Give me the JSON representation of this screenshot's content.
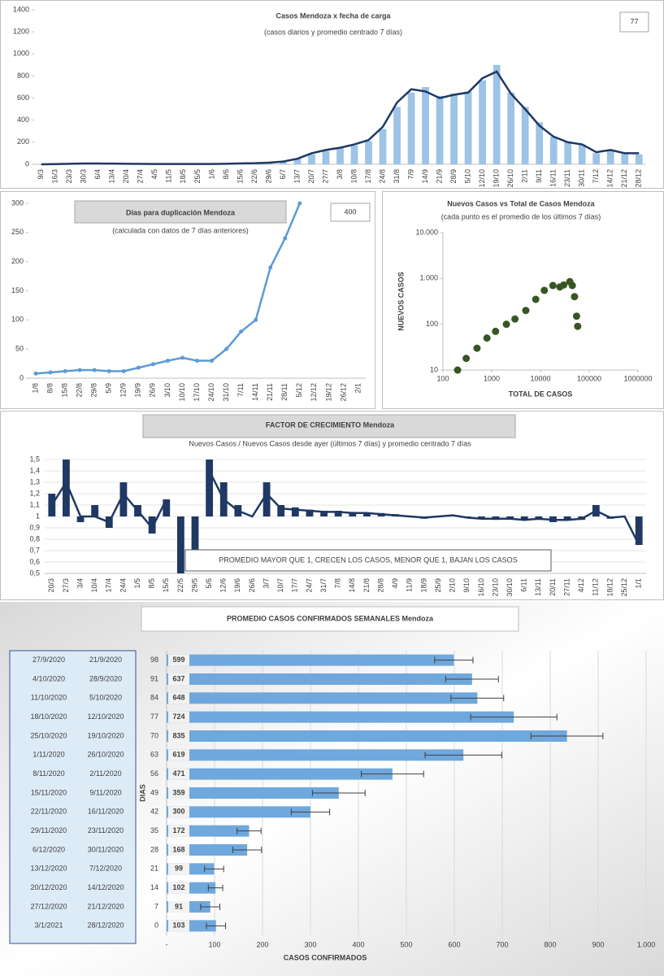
{
  "chart_data": [
    {
      "type": "bar_line",
      "title": "Casos Mendoza x fecha de carga",
      "subtitle": "(casos diarios y promedio  centrado 7 días)",
      "badge": "77",
      "categories": [
        "9/3",
        "16/3",
        "23/3",
        "30/3",
        "6/4",
        "13/4",
        "20/4",
        "27/4",
        "4/5",
        "11/5",
        "18/5",
        "25/5",
        "1/6",
        "8/6",
        "15/6",
        "22/6",
        "29/6",
        "6/7",
        "13/7",
        "20/7",
        "27/7",
        "3/8",
        "10/8",
        "17/8",
        "24/8",
        "31/8",
        "7/9",
        "14/9",
        "21/9",
        "28/9",
        "5/10",
        "12/10",
        "19/10",
        "26/10",
        "2/11",
        "9/11",
        "16/11",
        "23/11",
        "30/11",
        "7/12",
        "14/12",
        "21/12",
        "28/12"
      ],
      "series": [
        {
          "type": "bar",
          "color": "#9dc3e6",
          "values": [
            0,
            2,
            5,
            8,
            8,
            6,
            5,
            4,
            3,
            3,
            3,
            3,
            3,
            5,
            8,
            10,
            15,
            25,
            50,
            90,
            120,
            150,
            170,
            210,
            320,
            520,
            650,
            700,
            620,
            640,
            660,
            760,
            900,
            650,
            520,
            380,
            250,
            200,
            180,
            100,
            130,
            100,
            90
          ]
        },
        {
          "type": "line",
          "color": "#1f3864",
          "values": [
            0,
            2,
            5,
            7,
            7,
            6,
            5,
            4,
            3,
            3,
            3,
            3,
            3,
            5,
            8,
            10,
            15,
            25,
            50,
            100,
            130,
            150,
            180,
            220,
            340,
            560,
            680,
            660,
            600,
            630,
            650,
            780,
            840,
            640,
            500,
            350,
            250,
            200,
            180,
            110,
            130,
            100,
            100
          ]
        }
      ],
      "ylim": [
        0,
        1400
      ],
      "yticks": [
        0,
        200,
        400,
        600,
        800,
        1000,
        1200,
        1400
      ],
      "grid": false
    },
    {
      "type": "line",
      "title": "Dias para duplicación Mendoza",
      "subtitle": "(calculada con datos de 7 días anteriores)",
      "badge": "400",
      "categories": [
        "1/8",
        "8/8",
        "15/8",
        "22/8",
        "29/8",
        "5/9",
        "12/9",
        "19/9",
        "26/9",
        "3/10",
        "10/10",
        "17/10",
        "24/10",
        "31/10",
        "7/11",
        "14/11",
        "21/11",
        "28/11",
        "5/12",
        "12/12",
        "19/12",
        "26/12",
        "2/1"
      ],
      "series": [
        {
          "color": "#5b9bd5",
          "values": [
            8,
            10,
            12,
            14,
            14,
            12,
            12,
            18,
            24,
            30,
            35,
            30,
            30,
            50,
            80,
            100,
            190,
            240,
            300,
            null,
            null,
            null,
            null
          ]
        }
      ],
      "ylim": [
        0,
        300
      ],
      "yticks": [
        0,
        50,
        100,
        150,
        200,
        250,
        300
      ],
      "grid": false
    },
    {
      "type": "scatter",
      "title": "Nuevos Casos vs Total de Casos Mendoza",
      "subtitle": "(cada punto es el promedio de los últimos 7 días)",
      "x_label": "TOTAL DE CASOS",
      "y_label": "NUEVOS CASOS",
      "log_x": true,
      "log_y": true,
      "series": [
        {
          "color": "#375623",
          "x": [
            200,
            300,
            500,
            800,
            1200,
            2000,
            3000,
            5000,
            8000,
            12000,
            18000,
            25000,
            30000,
            40000,
            45000,
            50000,
            55000,
            58000
          ],
          "values": [
            10,
            18,
            30,
            50,
            70,
            100,
            130,
            200,
            350,
            550,
            700,
            650,
            720,
            850,
            700,
            400,
            150,
            90
          ]
        }
      ],
      "xlim": [
        100,
        1000000
      ],
      "xticks": [
        100,
        1000,
        10000,
        100000,
        1000000
      ],
      "ylim": [
        10,
        10000
      ],
      "yticks": [
        10,
        100,
        {
          "value": 1000,
          "label": "1.000"
        },
        {
          "value": 10000,
          "label": "10.000"
        }
      ],
      "grid": false
    },
    {
      "type": "bar_line",
      "title": "FACTOR DE CRECIMIENTO Mendoza",
      "subtitle": "Nuevos Casos  / Nuevos Casos desde ayer (últimos 7 días) y promedio  centrado 7 días",
      "annotation": "PROMEDIO MAYOR QUE 1, CRECEN LOS CASOS, MENOR QUE 1, BAJAN LOS CASOS",
      "baseline": 1,
      "categories": [
        "20/3",
        "27/3",
        "3/4",
        "10/4",
        "17/4",
        "24/4",
        "1/5",
        "8/5",
        "15/5",
        "22/5",
        "29/5",
        "5/6",
        "12/6",
        "19/6",
        "26/6",
        "3/7",
        "10/7",
        "17/7",
        "24/7",
        "31/7",
        "7/8",
        "14/8",
        "21/8",
        "28/8",
        "4/9",
        "11/9",
        "18/9",
        "25/9",
        "2/10",
        "9/10",
        "16/10",
        "23/10",
        "30/10",
        "6/11",
        "13/11",
        "20/11",
        "27/11",
        "4/12",
        "11/12",
        "18/12",
        "25/12",
        "1/1"
      ],
      "series": [
        {
          "type": "bar",
          "color": "#1f3864",
          "values": [
            1.2,
            1.5,
            0.95,
            1.1,
            0.9,
            1.3,
            1.1,
            0.85,
            1.15,
            0.5,
            0.6,
            1.5,
            1.3,
            1.1,
            1.0,
            1.3,
            1.1,
            1.08,
            1.06,
            1.05,
            1.05,
            1.04,
            1.03,
            1.03,
            1.02,
            1.0,
            0.98,
            1.0,
            1.01,
            0.99,
            0.98,
            0.97,
            0.98,
            0.97,
            0.97,
            0.95,
            0.97,
            0.97,
            1.1,
            0.98,
            1.0,
            0.75
          ]
        },
        {
          "type": "line",
          "color": "#1f3864",
          "values": [
            1.1,
            1.3,
            1.0,
            1.0,
            0.95,
            1.2,
            1.05,
            0.9,
            1.15,
            null,
            null,
            1.4,
            1.15,
            1.05,
            1.0,
            1.2,
            1.07,
            1.06,
            1.05,
            1.04,
            1.04,
            1.03,
            1.03,
            1.02,
            1.01,
            1.0,
            0.99,
            1.0,
            1.01,
            0.99,
            0.98,
            0.98,
            0.98,
            0.97,
            0.98,
            0.97,
            0.97,
            0.98,
            1.05,
            0.99,
            1.0,
            0.75
          ]
        }
      ],
      "ylim": [
        0.5,
        1.5
      ],
      "yticks": [
        {
          "value": 0.5,
          "label": "0,5"
        },
        {
          "value": 0.6,
          "label": "0,6"
        },
        {
          "value": 0.7,
          "label": "0,7"
        },
        {
          "value": 0.8,
          "label": "0,8"
        },
        {
          "value": 0.9,
          "label": "0,9"
        },
        1,
        {
          "value": 1.1,
          "label": "1,1"
        },
        {
          "value": 1.2,
          "label": "1,2"
        },
        {
          "value": 1.3,
          "label": "1,3"
        },
        {
          "value": 1.4,
          "label": "1,4"
        },
        {
          "value": 1.5,
          "label": "1,5"
        }
      ],
      "grid": true
    },
    {
      "type": "hbar",
      "title": "PROMEDIO CASOS CONFIRMADOS SEMANALES Mendoza",
      "x_label": "CASOS CONFIRMADOS",
      "y_label": "DIAS",
      "color": "#6fa8dc",
      "date_ranges": [
        [
          "27/9/2020",
          "21/9/2020"
        ],
        [
          "4/10/2020",
          "28/9/2020"
        ],
        [
          "11/10/2020",
          "5/10/2020"
        ],
        [
          "18/10/2020",
          "12/10/2020"
        ],
        [
          "25/10/2020",
          "19/10/2020"
        ],
        [
          "1/11/2020",
          "26/10/2020"
        ],
        [
          "8/11/2020",
          "2/11/2020"
        ],
        [
          "15/11/2020",
          "9/11/2020"
        ],
        [
          "22/11/2020",
          "16/11/2020"
        ],
        [
          "29/11/2020",
          "23/11/2020"
        ],
        [
          "6/12/2020",
          "30/11/2020"
        ],
        [
          "13/12/2020",
          "7/12/2020"
        ],
        [
          "20/12/2020",
          "14/12/2020"
        ],
        [
          "27/12/2020",
          "21/12/2020"
        ],
        [
          "3/1/2021",
          "28/12/2020"
        ]
      ],
      "categories": [
        "98",
        "91",
        "84",
        "77",
        "70",
        "63",
        "56",
        "49",
        "42",
        "35",
        "28",
        "21",
        "14",
        "7",
        "0"
      ],
      "values": [
        599,
        637,
        648,
        724,
        835,
        619,
        471,
        359,
        300,
        172,
        168,
        99,
        102,
        91,
        103
      ],
      "errors": [
        40,
        55,
        55,
        90,
        75,
        80,
        65,
        55,
        40,
        25,
        30,
        20,
        15,
        20,
        20
      ],
      "xlim": [
        0,
        1000
      ],
      "xticks": [
        {
          "value": 0,
          "label": "-"
        },
        100,
        200,
        300,
        400,
        500,
        600,
        700,
        800,
        900,
        {
          "value": 1000,
          "label": "1.000"
        }
      ],
      "grid": true
    }
  ]
}
